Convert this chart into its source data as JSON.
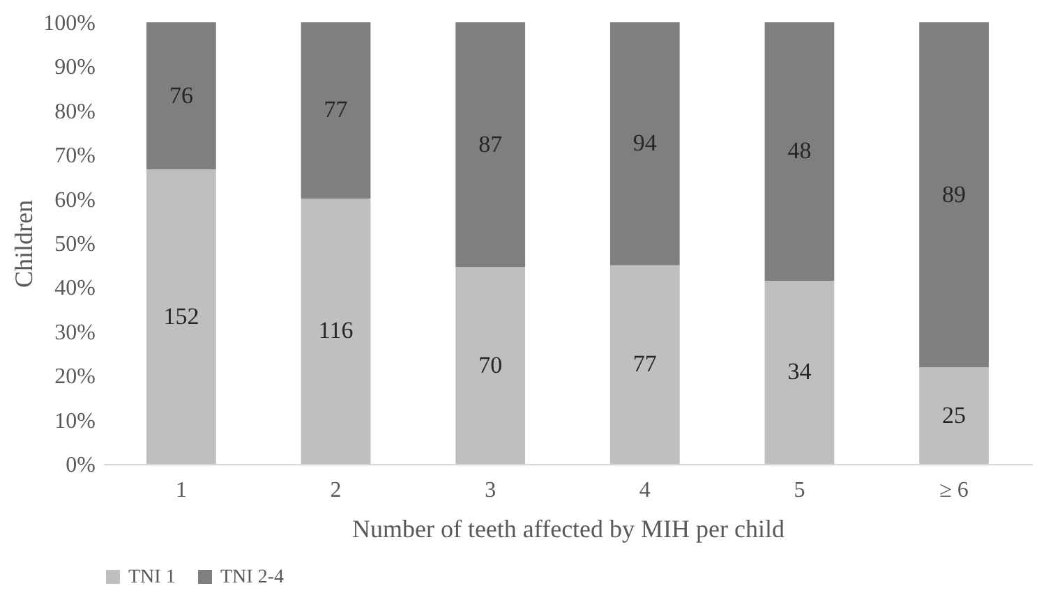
{
  "chart_data": {
    "type": "bar",
    "stacked": true,
    "xlabel": "Number of teeth affected by MIH per child",
    "ylabel": "Children",
    "categories": [
      "1",
      "2",
      "3",
      "4",
      "5",
      "≥ 6"
    ],
    "series": [
      {
        "name": "TNI 1",
        "color": "#bfbfbf",
        "values": [
          66.7,
          60.1,
          44.6,
          45.0,
          41.5,
          21.9
        ]
      },
      {
        "name": "TNI 2-4",
        "color": "#7f7f7f",
        "values": [
          33.3,
          39.9,
          55.4,
          55.0,
          58.5,
          78.1
        ]
      }
    ],
    "annotations": [
      "152",
      "116",
      "70",
      "77",
      "34",
      "25",
      "76",
      "77",
      "87",
      "94",
      "48",
      "89"
    ],
    "ylim": [
      0,
      100
    ],
    "yticks": [
      {
        "value": 0,
        "label": "0%"
      },
      {
        "value": 10,
        "label": "10%"
      },
      {
        "value": 20,
        "label": "20%"
      },
      {
        "value": 30,
        "label": "30%"
      },
      {
        "value": 40,
        "label": "40%"
      },
      {
        "value": 50,
        "label": "50%"
      },
      {
        "value": 60,
        "label": "60%"
      },
      {
        "value": 70,
        "label": "70%"
      },
      {
        "value": 80,
        "label": "80%"
      },
      {
        "value": 90,
        "label": "90%"
      },
      {
        "value": 100,
        "label": "100%"
      }
    ],
    "grid": false,
    "legend": "bottom"
  }
}
